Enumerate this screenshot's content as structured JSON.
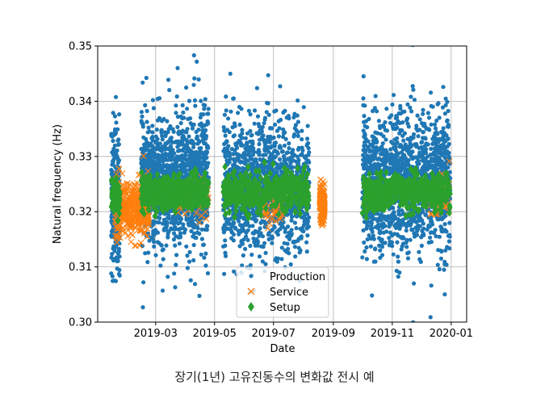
{
  "chart_data": {
    "type": "scatter",
    "xlabel": "Date",
    "ylabel": "Natural frequency (Hz)",
    "ylim": [
      0.3,
      0.35
    ],
    "xlim": [
      "2018-12-31",
      "2020-01-17"
    ],
    "grid": true,
    "legend_position": "lower-center",
    "yticks": [
      "0.30",
      "0.31",
      "0.32",
      "0.33",
      "0.34",
      "0.35"
    ],
    "xticks": [
      {
        "label": "2019-03",
        "date": "2019-03-01"
      },
      {
        "label": "2019-05",
        "date": "2019-05-01"
      },
      {
        "label": "2019-07",
        "date": "2019-07-01"
      },
      {
        "label": "2019-09",
        "date": "2019-09-01"
      },
      {
        "label": "2019-11",
        "date": "2019-11-01"
      },
      {
        "label": "2020-01",
        "date": "2020-01-01"
      }
    ],
    "series": [
      {
        "name": "Production",
        "marker": "dot",
        "color": "#1f77b4",
        "segments": [
          {
            "start": "2019-01-14",
            "end": "2019-01-23",
            "mean": 0.322,
            "sd": 0.006,
            "count": 250
          },
          {
            "start": "2019-02-14",
            "end": "2019-04-25",
            "mean": 0.3255,
            "sd": 0.0055,
            "count": 1400
          },
          {
            "start": "2019-05-10",
            "end": "2019-08-07",
            "mean": 0.3245,
            "sd": 0.0055,
            "count": 1300
          },
          {
            "start": "2019-10-01",
            "end": "2019-12-31",
            "mean": 0.3255,
            "sd": 0.0055,
            "count": 1500
          }
        ]
      },
      {
        "name": "Service",
        "marker": "x",
        "color": "#ff7f0e",
        "segments": [
          {
            "start": "2019-01-18",
            "end": "2019-02-22",
            "mean": 0.3205,
            "sd": 0.0025,
            "count": 450
          },
          {
            "start": "2019-03-20",
            "end": "2019-04-25",
            "mean": 0.3225,
            "sd": 0.0015,
            "count": 60
          },
          {
            "start": "2019-06-20",
            "end": "2019-07-10",
            "mean": 0.3215,
            "sd": 0.002,
            "count": 50
          },
          {
            "start": "2019-08-18",
            "end": "2019-08-23",
            "mean": 0.3215,
            "sd": 0.0018,
            "count": 150
          },
          {
            "start": "2019-12-10",
            "end": "2019-12-31",
            "mean": 0.3225,
            "sd": 0.002,
            "count": 40
          }
        ]
      },
      {
        "name": "Setup",
        "marker": "diamond",
        "color": "#2ca02c",
        "segments": [
          {
            "start": "2019-01-14",
            "end": "2019-01-23",
            "mean": 0.323,
            "sd": 0.0015,
            "count": 80
          },
          {
            "start": "2019-02-14",
            "end": "2019-04-25",
            "mean": 0.3235,
            "sd": 0.0015,
            "count": 500
          },
          {
            "start": "2019-05-10",
            "end": "2019-08-07",
            "mean": 0.3235,
            "sd": 0.0017,
            "count": 450
          },
          {
            "start": "2019-10-01",
            "end": "2019-12-31",
            "mean": 0.3235,
            "sd": 0.0015,
            "count": 550
          }
        ]
      }
    ]
  },
  "caption": "장기(1년) 고유진동수의 변화값 전시 예"
}
